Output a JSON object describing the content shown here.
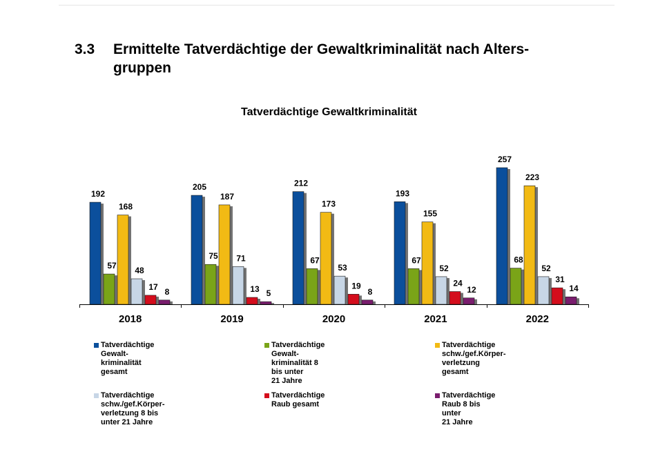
{
  "section": {
    "number": "3.3",
    "title_line1": "Ermittelte Tatverdächtige der Gewaltkriminalität nach Alters-",
    "title_line2": "gruppen"
  },
  "chart_data": {
    "type": "bar",
    "title": "Tatverdächtige Gewaltkriminalität",
    "xlabel": "",
    "ylabel": "",
    "categories": [
      "2018",
      "2019",
      "2020",
      "2021",
      "2022"
    ],
    "ylim": [
      0,
      257
    ],
    "grid": false,
    "legend_position": "bottom",
    "series": [
      {
        "name": "Tatverdächtige Gewalt-\nkriminalität  gesamt",
        "color": "#0b4f9c",
        "values": [
          192,
          205,
          212,
          193,
          257
        ]
      },
      {
        "name": "Tatverdächtige Gewalt-\nkriminalität  8 bis unter\n21 Jahre",
        "color": "#7aa418",
        "values": [
          57,
          75,
          67,
          67,
          68
        ]
      },
      {
        "name": "Tatverdächtige schw./gef.Körper-\nverletzung gesamt",
        "color": "#f2ba14",
        "values": [
          168,
          187,
          173,
          155,
          223
        ]
      },
      {
        "name": "Tatverdächtige schw./gef.Körper-\nverletzung 8 bis unter 21 Jahre",
        "color": "#c7d6e6",
        "values": [
          48,
          71,
          53,
          52,
          52
        ]
      },
      {
        "name": "Tatverdächtige Raub gesamt",
        "color": "#d40d1c",
        "values": [
          17,
          13,
          19,
          24,
          31
        ]
      },
      {
        "name": "Tatverdächtige Raub 8 bis unter\n21 Jahre",
        "color": "#7a1d6e",
        "values": [
          8,
          5,
          8,
          12,
          14
        ]
      }
    ]
  }
}
